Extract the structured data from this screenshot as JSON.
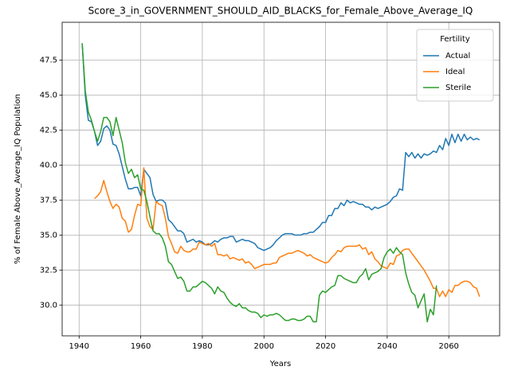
{
  "chart_data": {
    "type": "line",
    "title": "Score_3_in_GOVERNMENT_SHOULD_AID_BLACKS_for_Female_Above_Average_IQ",
    "xlabel": "Years",
    "ylabel": "% of Female Above_Average_IQ Population",
    "legend_title": "Fertility",
    "legend": "upper right",
    "grid": true,
    "x": [
      1941,
      1942,
      1943,
      1944,
      1945,
      1946,
      1947,
      1948,
      1949,
      1950,
      1951,
      1952,
      1953,
      1954,
      1955,
      1956,
      1957,
      1958,
      1959,
      1960,
      1961,
      1962,
      1963,
      1964,
      1965,
      1966,
      1967,
      1968,
      1969,
      1970,
      1971,
      1972,
      1973,
      1974,
      1975,
      1976,
      1977,
      1978,
      1979,
      1980,
      1981,
      1982,
      1983,
      1984,
      1985,
      1986,
      1987,
      1988,
      1989,
      1990,
      1991,
      1992,
      1993,
      1994,
      1995,
      1996,
      1997,
      1998,
      1999,
      2000,
      2001,
      2002,
      2003,
      2004,
      2005,
      2006,
      2007,
      2008,
      2009,
      2010,
      2011,
      2012,
      2013,
      2014,
      2015,
      2016,
      2017,
      2018,
      2019,
      2020,
      2021,
      2022,
      2023,
      2024,
      2025,
      2026,
      2027,
      2028,
      2029,
      2030,
      2031,
      2032,
      2033,
      2034,
      2035,
      2036,
      2037,
      2038,
      2039,
      2040,
      2041,
      2042,
      2043,
      2044,
      2045,
      2046,
      2047,
      2048,
      2049,
      2050,
      2051,
      2052,
      2053,
      2054,
      2055,
      2056,
      2057,
      2058,
      2059,
      2060,
      2061,
      2062,
      2063,
      2064,
      2065,
      2066,
      2067,
      2068,
      2069,
      2070
    ],
    "series": [
      {
        "name": "Actual",
        "color": "#1f77b4",
        "values": [
          48.7,
          45.0,
          43.2,
          43.1,
          42.4,
          41.4,
          41.7,
          42.6,
          42.8,
          42.5,
          41.5,
          41.4,
          40.8,
          39.9,
          39.0,
          38.3,
          38.3,
          38.4,
          38.4,
          37.8,
          39.7,
          39.4,
          39.1,
          37.9,
          37.4,
          37.5,
          37.5,
          37.3,
          36.1,
          35.9,
          35.6,
          35.3,
          35.3,
          35.1,
          34.5,
          34.6,
          34.7,
          34.5,
          34.6,
          34.5,
          34.3,
          34.3,
          34.4,
          34.6,
          34.5,
          34.7,
          34.8,
          34.8,
          34.9,
          34.9,
          34.5,
          34.6,
          34.7,
          34.6,
          34.6,
          34.5,
          34.4,
          34.1,
          34.0,
          33.9,
          34.0,
          34.1,
          34.3,
          34.6,
          34.8,
          35.0,
          35.1,
          35.1,
          35.1,
          35.0,
          35.0,
          35.0,
          35.1,
          35.1,
          35.2,
          35.2,
          35.4,
          35.6,
          35.9,
          35.9,
          36.4,
          36.4,
          36.9,
          36.9,
          37.3,
          37.1,
          37.5,
          37.3,
          37.4,
          37.3,
          37.2,
          37.2,
          37.0,
          37.0,
          36.8,
          37.0,
          36.9,
          37.0,
          37.1,
          37.2,
          37.4,
          37.7,
          37.8,
          38.3,
          38.2,
          40.9,
          40.6,
          40.9,
          40.5,
          40.8,
          40.5,
          40.8,
          40.7,
          40.8,
          41.0,
          40.9,
          41.4,
          41.1,
          41.9,
          41.4,
          42.2,
          41.6,
          42.2,
          41.7,
          42.2,
          41.8,
          42.0,
          41.8,
          41.9,
          41.8
        ]
      },
      {
        "name": "Ideal",
        "color": "#ff7f0e",
        "values": [
          null,
          null,
          null,
          null,
          37.6,
          37.8,
          38.1,
          38.9,
          38.1,
          37.4,
          36.9,
          37.2,
          37.0,
          36.2,
          36.0,
          35.2,
          35.4,
          36.4,
          37.2,
          37.1,
          39.8,
          36.2,
          35.6,
          35.4,
          37.4,
          37.2,
          37.1,
          36.2,
          34.9,
          34.4,
          33.8,
          33.7,
          34.2,
          33.9,
          33.8,
          33.8,
          34.0,
          34.0,
          34.5,
          34.4,
          34.3,
          34.4,
          34.2,
          34.4,
          33.6,
          33.6,
          33.5,
          33.6,
          33.3,
          33.4,
          33.3,
          33.2,
          33.3,
          33.0,
          33.1,
          32.9,
          32.6,
          32.7,
          32.8,
          32.9,
          32.9,
          32.9,
          33.0,
          33.0,
          33.4,
          33.5,
          33.6,
          33.7,
          33.7,
          33.8,
          33.9,
          33.8,
          33.7,
          33.5,
          33.6,
          33.4,
          33.3,
          33.2,
          33.1,
          33.0,
          33.1,
          33.4,
          33.6,
          33.9,
          33.8,
          34.1,
          34.2,
          34.2,
          34.2,
          34.2,
          34.3,
          34.0,
          34.1,
          33.6,
          33.8,
          33.3,
          33.1,
          32.8,
          32.7,
          32.6,
          33.0,
          32.9,
          33.5,
          33.6,
          33.9,
          34.0,
          34.0,
          33.7,
          33.4,
          33.1,
          32.8,
          32.5,
          32.1,
          31.7,
          31.2,
          31.2,
          30.6,
          31.0,
          30.6,
          31.1,
          30.9,
          31.4,
          31.4,
          31.6,
          31.7,
          31.7,
          31.6,
          31.3,
          31.2,
          30.6
        ]
      },
      {
        "name": "Sterile",
        "color": "#2ca02c",
        "values": [
          48.7,
          45.3,
          43.8,
          43.2,
          42.4,
          41.7,
          42.4,
          43.4,
          43.4,
          43.1,
          42.1,
          43.4,
          42.5,
          41.6,
          40.2,
          39.4,
          39.7,
          39.1,
          39.3,
          38.3,
          38.2,
          37.4,
          36.3,
          35.3,
          35.1,
          35.1,
          34.8,
          34.2,
          33.1,
          32.9,
          32.4,
          31.9,
          32.0,
          31.7,
          31.0,
          31.0,
          31.3,
          31.3,
          31.5,
          31.7,
          31.6,
          31.4,
          31.2,
          30.8,
          31.3,
          31.0,
          30.9,
          30.5,
          30.2,
          30.0,
          29.9,
          30.1,
          29.8,
          29.8,
          29.6,
          29.5,
          29.5,
          29.4,
          29.1,
          29.3,
          29.2,
          29.3,
          29.3,
          29.4,
          29.3,
          29.1,
          28.9,
          28.9,
          29.0,
          29.0,
          28.9,
          28.9,
          29.0,
          29.2,
          29.2,
          28.8,
          28.8,
          30.7,
          31.0,
          30.9,
          31.1,
          31.3,
          31.4,
          32.1,
          32.1,
          31.9,
          31.8,
          31.7,
          31.6,
          31.6,
          32.0,
          32.2,
          32.6,
          31.8,
          32.2,
          32.3,
          32.4,
          32.6,
          33.4,
          33.8,
          34.0,
          33.7,
          34.1,
          33.8,
          33.6,
          32.3,
          31.5,
          30.9,
          30.7,
          29.8,
          30.3,
          30.8,
          28.8,
          29.7,
          29.3,
          31.4,
          null,
          null,
          null,
          null,
          null,
          null,
          null,
          null,
          null,
          null,
          null,
          null,
          null,
          null
        ]
      }
    ],
    "xlim": [
      1934.5,
      2076.5
    ],
    "xticks": [
      1940,
      1960,
      1980,
      2000,
      2020,
      2040,
      2060
    ],
    "ylim": [
      27.8,
      50.2
    ],
    "yticks": [
      {
        "value": 30,
        "label": "30.0"
      },
      32.5,
      {
        "value": 35,
        "label": "35.0"
      },
      37.5,
      {
        "value": 40,
        "label": "40.0"
      },
      42.5,
      {
        "value": 45,
        "label": "45.0"
      },
      47.5
    ]
  }
}
